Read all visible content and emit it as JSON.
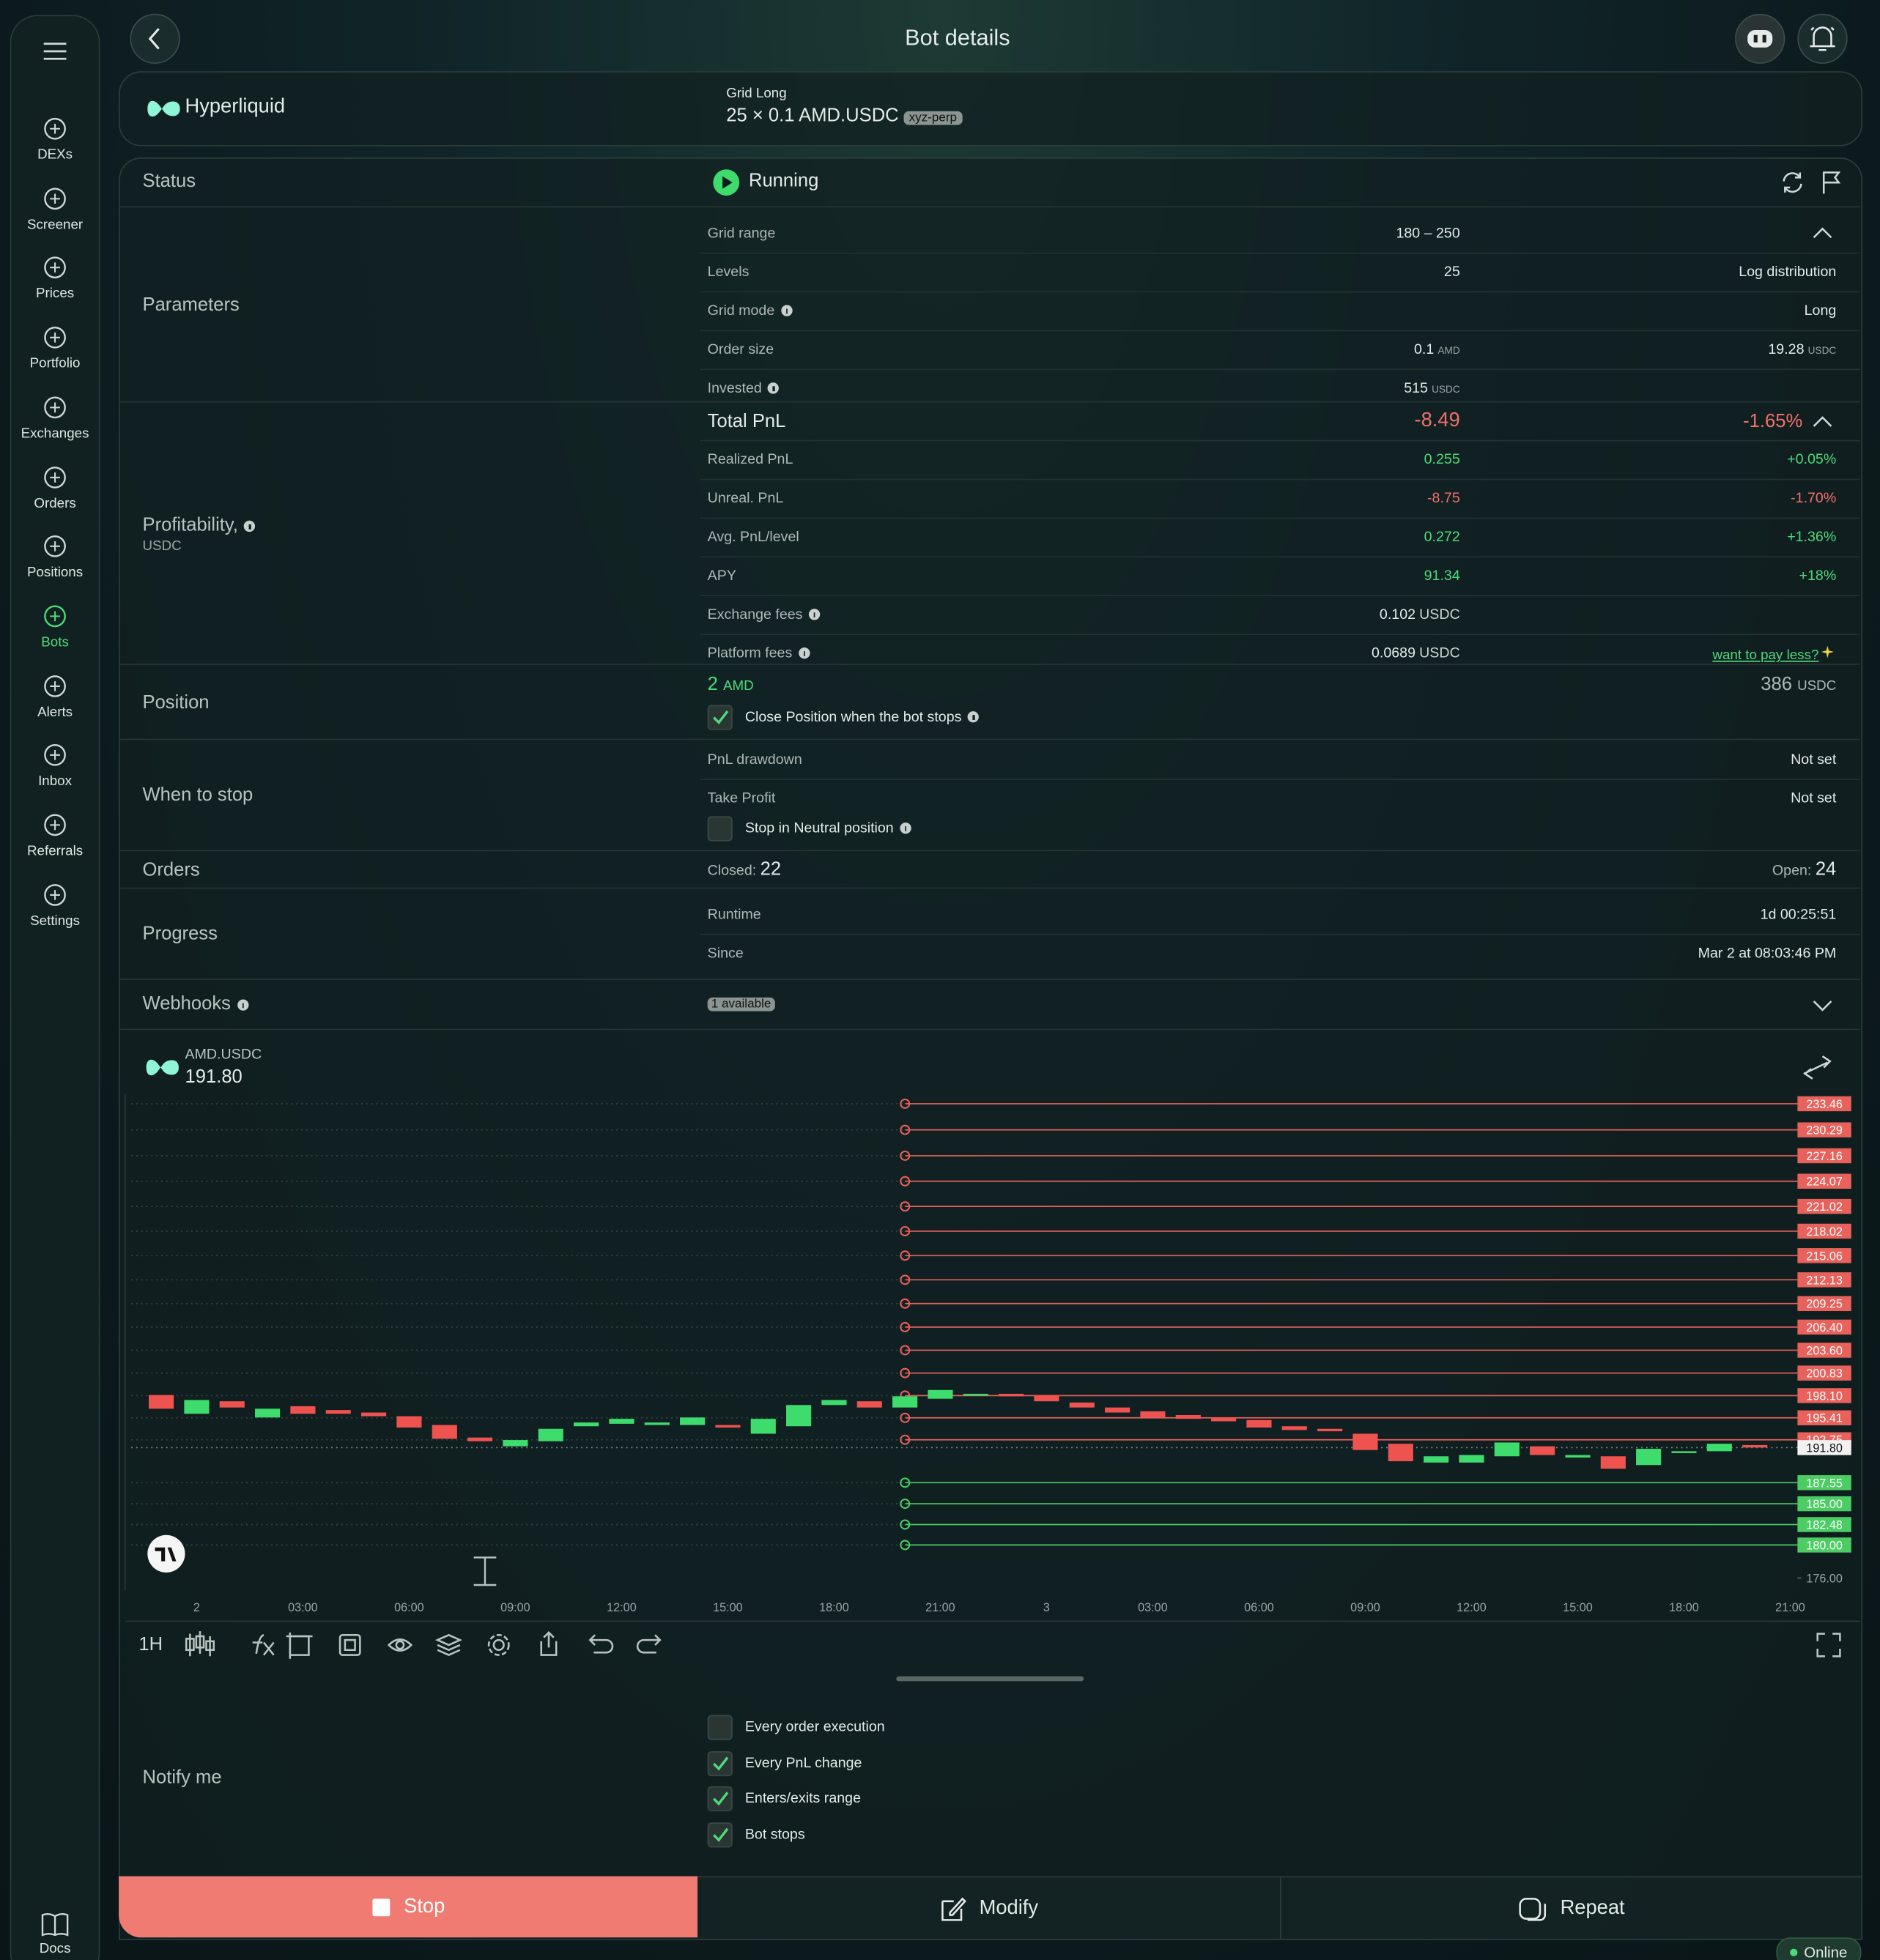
{
  "header": {
    "title": "Bot details"
  },
  "sidebar": {
    "items": [
      {
        "label": "DEXs"
      },
      {
        "label": "Screener"
      },
      {
        "label": "Prices"
      },
      {
        "label": "Portfolio"
      },
      {
        "label": "Exchanges"
      },
      {
        "label": "Orders"
      },
      {
        "label": "Positions"
      },
      {
        "label": "Bots",
        "active": true
      },
      {
        "label": "Alerts"
      },
      {
        "label": "Inbox"
      },
      {
        "label": "Referrals"
      },
      {
        "label": "Settings"
      }
    ],
    "footer": "Docs"
  },
  "bot": {
    "exchange": "Hyperliquid",
    "strategy": "Grid Long",
    "summary": "25 × 0.1 AMD.USDC",
    "market": "xyz-perp"
  },
  "status": {
    "label": "Status",
    "value": "Running"
  },
  "parameters": {
    "label": "Parameters",
    "rows": [
      {
        "label": "Grid range",
        "value": "180 – 250"
      },
      {
        "label": "Levels",
        "value": "25",
        "right": "Log distribution"
      },
      {
        "label": "Grid mode",
        "info": true,
        "right": "Long"
      },
      {
        "label": "Order size",
        "value": "0.1",
        "unit": "AMD",
        "right": "19.28",
        "right_unit": "USDC"
      },
      {
        "label": "Invested",
        "info": true,
        "value": "515",
        "unit": "USDC"
      }
    ]
  },
  "profitability": {
    "label": "Profitability,",
    "unit": "USDC",
    "rows": [
      {
        "label": "Total PnL",
        "value": "-8.49",
        "right": "-1.65%",
        "tone": "negative",
        "big": true
      },
      {
        "label": "Realized PnL",
        "value": "0.255",
        "right": "+0.05%",
        "tone": "positive"
      },
      {
        "label": "Unreal. PnL",
        "value": "-8.75",
        "right": "-1.70%",
        "tone": "negative"
      },
      {
        "label": "Avg. PnL/level",
        "value": "0.272",
        "right": "+1.36%",
        "tone": "positive"
      },
      {
        "label": "APY",
        "value": "91.34",
        "right": "+18%",
        "tone": "positive"
      },
      {
        "label": "Exchange fees",
        "info": true,
        "value": "0.102",
        "unit": "USDC"
      },
      {
        "label": "Platform fees",
        "info": true,
        "value": "0.0689",
        "unit": "USDC",
        "link": "want to pay less?"
      }
    ]
  },
  "position": {
    "label": "Position",
    "amount": "2",
    "amount_unit": "AMD",
    "value": "386",
    "value_unit": "USDC",
    "close_on_stop": {
      "label": "Close Position when the bot stops",
      "checked": true,
      "info": true
    }
  },
  "when_to_stop": {
    "label": "When to stop",
    "rows": [
      {
        "label": "PnL drawdown",
        "right": "Not set"
      },
      {
        "label": "Take Profit",
        "right": "Not set"
      }
    ],
    "neutral_stop": {
      "label": "Stop in Neutral position",
      "checked": false,
      "info": true
    }
  },
  "orders": {
    "label": "Orders",
    "closed_label": "Closed:",
    "closed": "22",
    "open_label": "Open:",
    "open": "24"
  },
  "progress": {
    "label": "Progress",
    "rows": [
      {
        "label": "Runtime",
        "right": "1d 00:25:51"
      },
      {
        "label": "Since",
        "right": "Mar 2 at 08:03:46 PM"
      }
    ]
  },
  "webhooks": {
    "label": "Webhooks",
    "badge": "1 available"
  },
  "chart": {
    "symbol": "AMD.USDC",
    "interval": "1H",
    "ylim": [
      174.55,
      234.67
    ],
    "current_level": {
      "value": 191.8,
      "label": "191.80"
    },
    "sell_levels": [
      233.46,
      230.29,
      227.16,
      224.07,
      221.02,
      218.02,
      215.06,
      212.13,
      209.25,
      {
        "value": 206.4,
        "label": "206.40"
      },
      {
        "value": 203.6,
        "label": "203.60"
      },
      200.83,
      {
        "value": 198.1,
        "label": "198.10"
      },
      195.41,
      192.75
    ],
    "buy_levels": [
      187.55,
      {
        "value": 185,
        "label": "185.00"
      },
      182.48,
      {
        "value": 180,
        "label": "180.00"
      }
    ],
    "yticks": [
      {
        "value": 176,
        "label": "176.00"
      }
    ],
    "x_labels": [
      "2",
      "03:00",
      "06:00",
      "09:00",
      "12:00",
      "15:00",
      "18:00",
      "21:00",
      "3",
      "03:00",
      "06:00",
      "09:00",
      "12:00",
      "15:00",
      "18:00",
      "21:00"
    ],
    "candles": [
      {
        "open": 198.17,
        "close": 196.51
      },
      {
        "open": 195.9,
        "close": 197.57
      },
      {
        "open": 197.41,
        "close": 196.66
      },
      {
        "open": 195.45,
        "close": 196.51
      },
      {
        "open": 196.81,
        "close": 195.9
      },
      {
        "open": 196.35,
        "close": 195.9
      },
      {
        "open": 196.05,
        "close": 195.6
      },
      {
        "open": 195.6,
        "close": 194.23
      },
      {
        "open": 194.54,
        "close": 192.87
      },
      {
        "open": 193.02,
        "close": 192.57
      },
      {
        "open": 191.96,
        "close": 192.72
      },
      {
        "open": 192.57,
        "close": 194.08
      },
      {
        "open": 194.39,
        "close": 194.84
      },
      {
        "open": 194.69,
        "close": 195.29
      },
      {
        "open": 194.54,
        "close": 194.84
      },
      {
        "open": 194.54,
        "close": 195.45
      },
      {
        "open": 194.54,
        "close": 194.23
      },
      {
        "open": 193.48,
        "close": 195.29
      },
      {
        "open": 194.39,
        "close": 196.96
      },
      {
        "open": 196.96,
        "close": 197.57
      },
      {
        "open": 197.41,
        "close": 196.66
      },
      {
        "open": 196.66,
        "close": 198.02
      },
      {
        "open": 197.72,
        "close": 198.78
      },
      {
        "open": 198.17,
        "close": 198.32
      },
      {
        "open": 198.32,
        "close": 198.02
      },
      {
        "open": 198.17,
        "close": 197.41
      },
      {
        "open": 197.26,
        "close": 196.66
      },
      {
        "open": 196.66,
        "close": 196.05
      },
      {
        "open": 196.2,
        "close": 195.45
      },
      {
        "open": 195.75,
        "close": 195.29
      },
      {
        "open": 195.45,
        "close": 194.99
      },
      {
        "open": 195.14,
        "close": 194.23
      },
      {
        "open": 194.39,
        "close": 193.93
      },
      {
        "open": 194.08,
        "close": 193.78
      },
      {
        "open": 193.48,
        "close": 191.51
      },
      {
        "open": 192.27,
        "close": 190.15
      },
      {
        "open": 189.99,
        "close": 190.75
      },
      {
        "open": 189.99,
        "close": 190.9
      },
      {
        "open": 190.75,
        "close": 192.42
      },
      {
        "open": 191.96,
        "close": 190.9
      },
      {
        "open": 190.6,
        "close": 190.9
      },
      {
        "open": 190.75,
        "close": 189.24
      },
      {
        "open": 189.69,
        "close": 191.66
      },
      {
        "open": 191.21,
        "close": 191.36
      },
      {
        "open": 191.36,
        "close": 192.27
      },
      {
        "open": 192.11,
        "close": 191.81
      }
    ]
  },
  "notify": {
    "label": "Notify me",
    "options": [
      {
        "label": "Every order execution",
        "checked": false
      },
      {
        "label": "Every PnL change",
        "checked": true
      },
      {
        "label": "Enters/exits range",
        "checked": true
      },
      {
        "label": "Bot stops",
        "checked": true
      }
    ]
  },
  "actions": {
    "stop": "Stop",
    "modify": "Modify",
    "repeat": "Repeat"
  },
  "connection": "Online"
}
